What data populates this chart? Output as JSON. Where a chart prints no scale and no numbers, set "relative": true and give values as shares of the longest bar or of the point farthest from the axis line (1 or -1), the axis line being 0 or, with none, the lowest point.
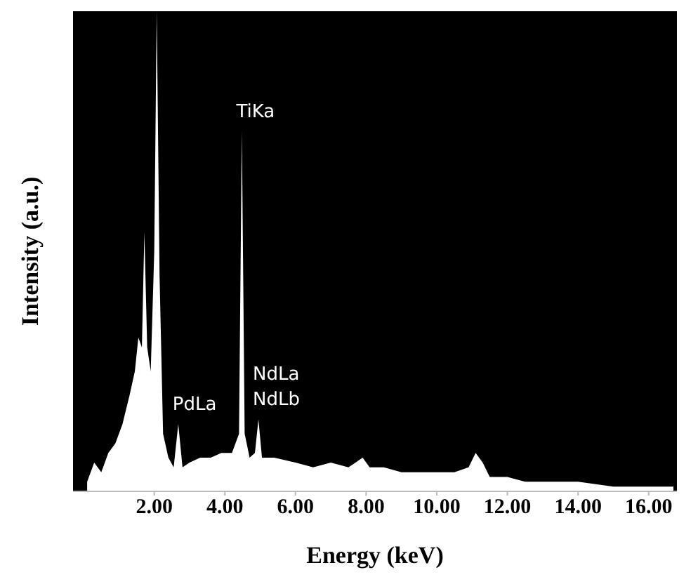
{
  "chart_data": {
    "type": "area",
    "xlabel": "Energy (keV)",
    "ylabel": "Intensity (a.u.)",
    "relative": true,
    "tick_labels": "x",
    "xlim": [
      -0.3,
      16.8
    ],
    "xticks": [
      {
        "value": 2,
        "label": "2.00"
      },
      {
        "value": 4,
        "label": "4.00"
      },
      {
        "value": 6,
        "label": "6.00"
      },
      {
        "value": 8,
        "label": "8.00"
      },
      {
        "value": 10,
        "label": "10.00"
      },
      {
        "value": 12,
        "label": "12.00"
      },
      {
        "value": 14,
        "label": "14.00"
      },
      {
        "value": 16,
        "label": "16.00"
      }
    ],
    "x": [
      0.1,
      0.3,
      0.5,
      0.7,
      0.9,
      1.1,
      1.3,
      1.45,
      1.55,
      1.65,
      1.72,
      1.8,
      1.9,
      2.0,
      2.07,
      2.15,
      2.25,
      2.4,
      2.55,
      2.68,
      2.8,
      3.0,
      3.3,
      3.6,
      3.9,
      4.2,
      4.4,
      4.48,
      4.56,
      4.7,
      4.85,
      4.95,
      5.05,
      5.4,
      6.0,
      6.5,
      7.0,
      7.5,
      7.9,
      8.1,
      8.5,
      9.0,
      9.5,
      10.0,
      10.5,
      10.9,
      11.1,
      11.3,
      11.5,
      12.0,
      12.5,
      13.0,
      14.0,
      15.0,
      16.0,
      16.7
    ],
    "series": [
      {
        "color": "#ffffff",
        "values": [
          0.02,
          0.06,
          0.04,
          0.08,
          0.1,
          0.14,
          0.2,
          0.25,
          0.32,
          0.3,
          0.54,
          0.3,
          0.25,
          0.5,
          1.0,
          0.45,
          0.12,
          0.07,
          0.05,
          0.14,
          0.05,
          0.06,
          0.07,
          0.07,
          0.08,
          0.08,
          0.12,
          0.75,
          0.12,
          0.07,
          0.08,
          0.15,
          0.07,
          0.07,
          0.06,
          0.05,
          0.06,
          0.05,
          0.07,
          0.05,
          0.05,
          0.04,
          0.04,
          0.04,
          0.04,
          0.05,
          0.08,
          0.06,
          0.03,
          0.03,
          0.02,
          0.02,
          0.02,
          0.01,
          0.01,
          0.01
        ]
      }
    ],
    "annotations": [
      {
        "text": "TiKa",
        "x": 4.48,
        "y": 0.75
      },
      {
        "text": "PdLa",
        "x": 2.68,
        "y": 0.14
      },
      {
        "text": "NdLa",
        "x": 4.95,
        "y": 0.15
      },
      {
        "text": "NdLb",
        "x": 4.95,
        "y": 0.15
      }
    ]
  }
}
